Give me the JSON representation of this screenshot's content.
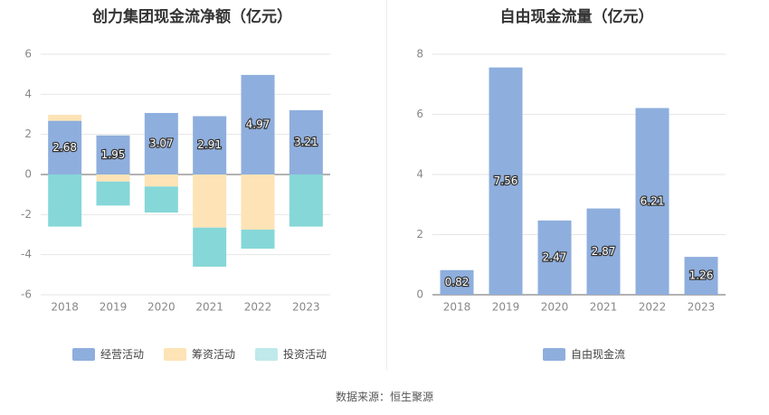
{
  "source_text": "数据来源：恒生聚源",
  "colors": {
    "operating": "#8eaedd",
    "financing": "#fde3b5",
    "investing": "#86d7d8",
    "investing_legend": "#bfe9ea",
    "fcf": "#8eaedd",
    "grid": "#e6e6e6",
    "axis_text": "#888888"
  },
  "chart_data": [
    {
      "type": "bar",
      "stacked": true,
      "title": "创力集团现金流净额（亿元）",
      "categories": [
        "2018",
        "2019",
        "2020",
        "2021",
        "2022",
        "2023"
      ],
      "ylim": [
        -6,
        6
      ],
      "yticks": [
        -6,
        -4,
        -2,
        0,
        2,
        4,
        6
      ],
      "grid": true,
      "legend_position": "bottom",
      "series": [
        {
          "name": "经营活动",
          "values": [
            2.68,
            1.95,
            3.07,
            2.91,
            4.97,
            3.21
          ],
          "show_labels": true
        },
        {
          "name": "筹资活动",
          "values": [
            0.3,
            -0.35,
            -0.6,
            -2.65,
            -2.75,
            0
          ]
        },
        {
          "name": "投资活动",
          "values": [
            -2.6,
            -1.2,
            -1.3,
            -1.95,
            -0.95,
            -2.6
          ]
        }
      ]
    },
    {
      "type": "bar",
      "title": "自由现金流量（亿元）",
      "categories": [
        "2018",
        "2019",
        "2020",
        "2021",
        "2022",
        "2023"
      ],
      "ylim": [
        0,
        8
      ],
      "yticks": [
        0,
        2,
        4,
        6,
        8
      ],
      "grid": true,
      "legend_position": "bottom",
      "series": [
        {
          "name": "自由现金流",
          "values": [
            0.82,
            7.56,
            2.47,
            2.87,
            6.21,
            1.26
          ],
          "show_labels": true
        }
      ]
    }
  ]
}
